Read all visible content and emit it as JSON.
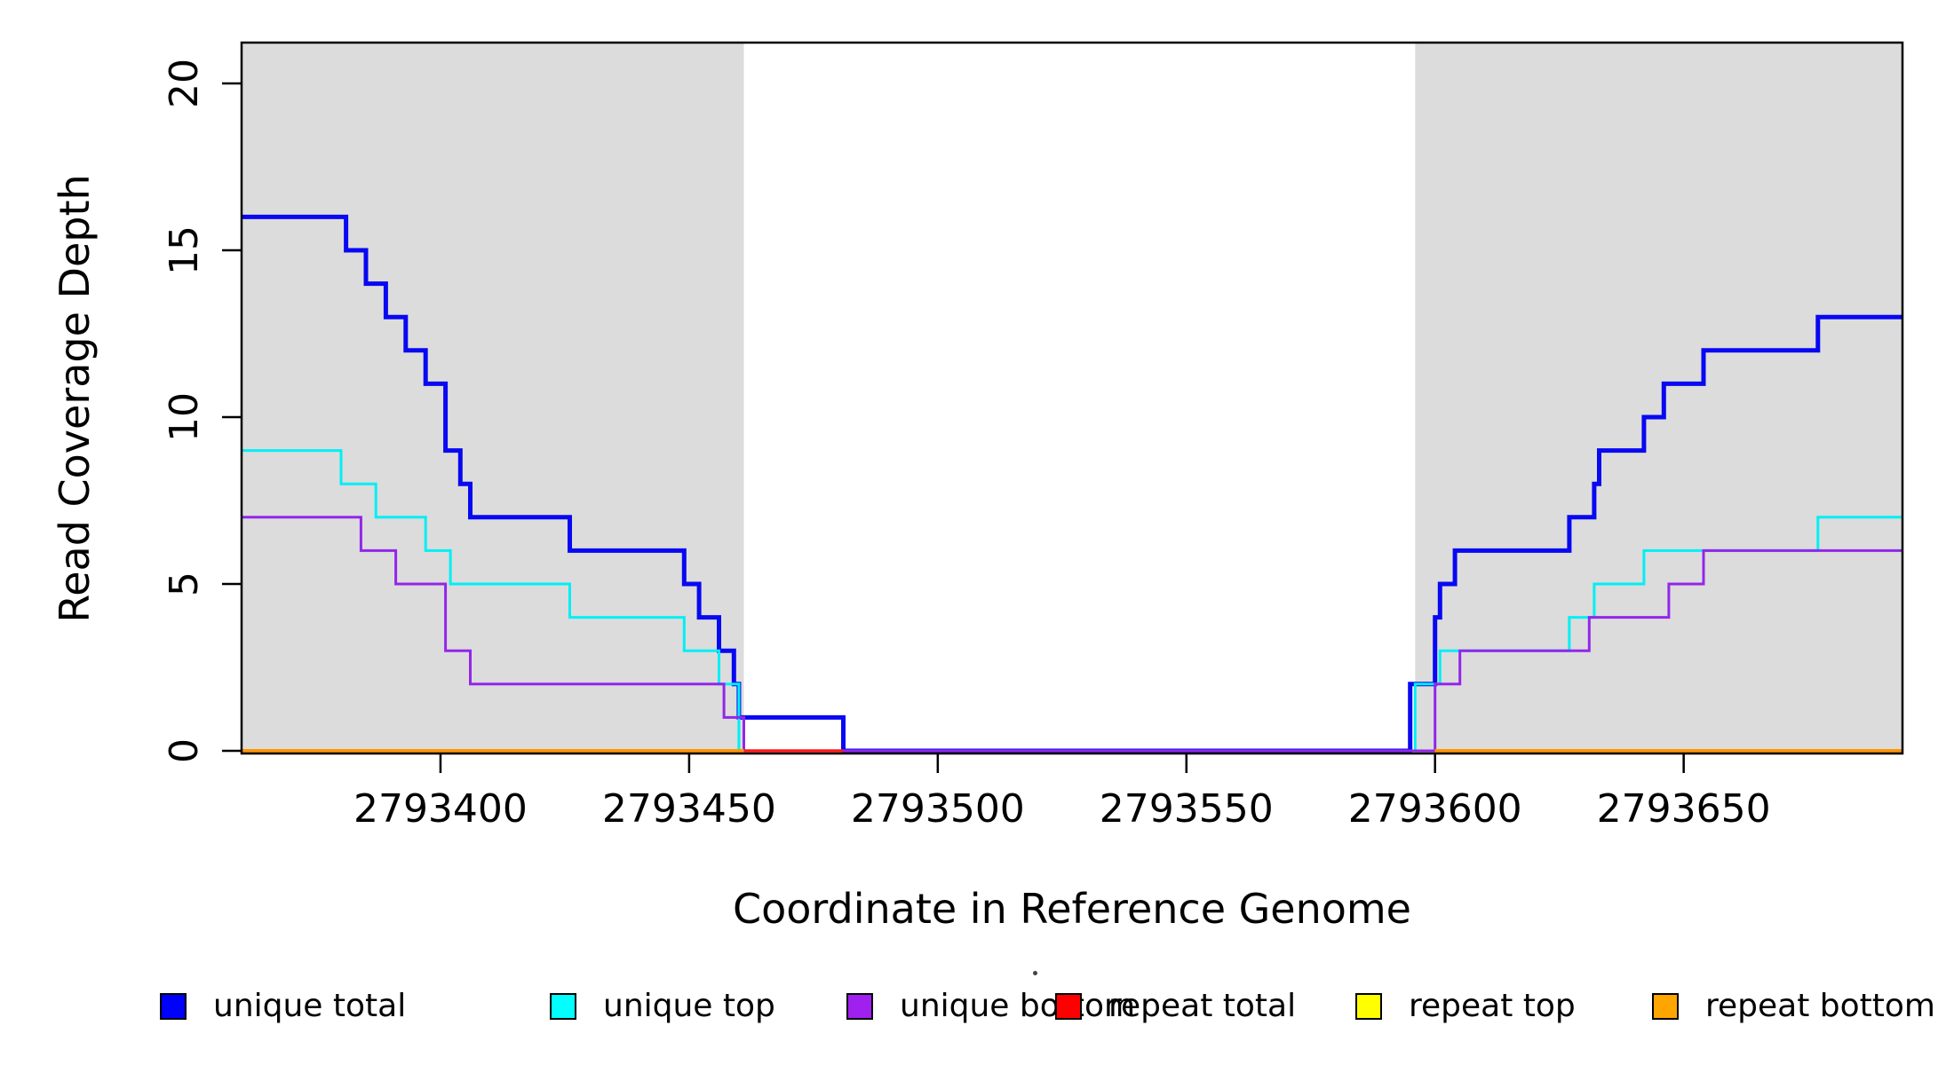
{
  "labels": {
    "x_axis": "Coordinate in Reference Genome",
    "y_axis": "Read Coverage Depth"
  },
  "legend": {
    "items": [
      {
        "label": "unique total",
        "color": "#0000FF"
      },
      {
        "label": "unique top",
        "color": "#00FFFF"
      },
      {
        "label": "unique bottom",
        "color": "#A020F0"
      },
      {
        "label": "repeat total",
        "color": "#FF0000"
      },
      {
        "label": "repeat top",
        "color": "#FFFF00"
      },
      {
        "label": "repeat bottom",
        "color": "#FFA500"
      }
    ]
  },
  "chart_data": {
    "type": "line",
    "subtype": "step-coverage",
    "title": "",
    "xlabel": "Coordinate in Reference Genome",
    "ylabel": "Read Coverage Depth",
    "x_range": [
      2793360,
      2793694
    ],
    "y_range": [
      0,
      21.2
    ],
    "grid": false,
    "legend_position": "bottom",
    "x_ticks": [
      {
        "value": 2793400,
        "label": "2793400"
      },
      {
        "value": 2793450,
        "label": "2793450"
      },
      {
        "value": 2793500,
        "label": "2793500"
      },
      {
        "value": 2793550,
        "label": "2793550"
      },
      {
        "value": 2793600,
        "label": "2793600"
      },
      {
        "value": 2793650,
        "label": "2793650"
      }
    ],
    "y_ticks": [
      {
        "value": 0,
        "label": "0"
      },
      {
        "value": 5,
        "label": "5"
      },
      {
        "value": 10,
        "label": "10"
      },
      {
        "value": 15,
        "label": "15"
      },
      {
        "value": 20,
        "label": "20"
      }
    ],
    "highlight_regions": [
      {
        "start": 2793360,
        "end": 2793461,
        "color": "#DCDCDC"
      },
      {
        "start": 2793596,
        "end": 2793694,
        "color": "#DCDCDC"
      }
    ],
    "series": [
      {
        "name": "unique total",
        "color": "#0808F2",
        "width": 5,
        "segments": [
          {
            "end": 2793694,
            "steps": [
              [
                2793360,
                16
              ],
              [
                2793381,
                15
              ],
              [
                2793385,
                14
              ],
              [
                2793389,
                13
              ],
              [
                2793393,
                12
              ],
              [
                2793397,
                11
              ],
              [
                2793401,
                9
              ],
              [
                2793404,
                8
              ],
              [
                2793406,
                7
              ],
              [
                2793426,
                6
              ],
              [
                2793449,
                5
              ],
              [
                2793452,
                4
              ],
              [
                2793456,
                3
              ],
              [
                2793459,
                2
              ],
              [
                2793460,
                1
              ],
              [
                2793481,
                0
              ],
              [
                2793595,
                2
              ],
              [
                2793600,
                4
              ],
              [
                2793601,
                5
              ],
              [
                2793604,
                6
              ],
              [
                2793627,
                7
              ],
              [
                2793632,
                8
              ],
              [
                2793633,
                9
              ],
              [
                2793642,
                10
              ],
              [
                2793646,
                11
              ],
              [
                2793654,
                12
              ],
              [
                2793677,
                13
              ]
            ]
          }
        ]
      },
      {
        "name": "unique top",
        "color": "#00EFF5",
        "width": 3,
        "segments": [
          {
            "end": 2793694,
            "steps": [
              [
                2793360,
                9
              ],
              [
                2793380,
                8
              ],
              [
                2793387,
                7
              ],
              [
                2793397,
                6
              ],
              [
                2793402,
                5
              ],
              [
                2793426,
                4
              ],
              [
                2793449,
                3
              ],
              [
                2793456,
                2
              ],
              [
                2793460,
                0
              ],
              [
                2793596,
                2
              ],
              [
                2793601,
                3
              ],
              [
                2793627,
                4
              ],
              [
                2793632,
                5
              ],
              [
                2793642,
                6
              ],
              [
                2793677,
                7
              ]
            ]
          }
        ]
      },
      {
        "name": "unique bottom",
        "color": "#9326E9",
        "width": 3,
        "segments": [
          {
            "end": 2793694,
            "steps": [
              [
                2793360,
                7
              ],
              [
                2793384,
                6
              ],
              [
                2793391,
                5
              ],
              [
                2793401,
                3
              ],
              [
                2793406,
                2
              ],
              [
                2793457,
                1
              ],
              [
                2793461,
                0
              ],
              [
                2793600,
                2
              ],
              [
                2793605,
                3
              ],
              [
                2793631,
                4
              ],
              [
                2793647,
                5
              ],
              [
                2793654,
                6
              ]
            ]
          }
        ]
      },
      {
        "name": "repeat total",
        "color": "#FF1A1A",
        "width": 3.5,
        "segments": [
          {
            "end": 2793481,
            "steps": [
              [
                2793360,
                0
              ]
            ]
          },
          {
            "end": 2793694,
            "steps": [
              [
                2793600,
                0
              ]
            ]
          }
        ]
      },
      {
        "name": "repeat top",
        "color": "#FFFF00",
        "width": 3.5,
        "segments": [
          {
            "end": 2793461,
            "steps": [
              [
                2793360,
                0
              ]
            ]
          },
          {
            "end": 2793694,
            "steps": [
              [
                2793600,
                0
              ]
            ]
          }
        ]
      },
      {
        "name": "repeat bottom",
        "color": "#FF9505",
        "width": 4,
        "segments": [
          {
            "end": 2793461,
            "steps": [
              [
                2793360,
                0
              ]
            ]
          },
          {
            "end": 2793694,
            "steps": [
              [
                2793600,
                0
              ]
            ]
          }
        ]
      }
    ]
  }
}
